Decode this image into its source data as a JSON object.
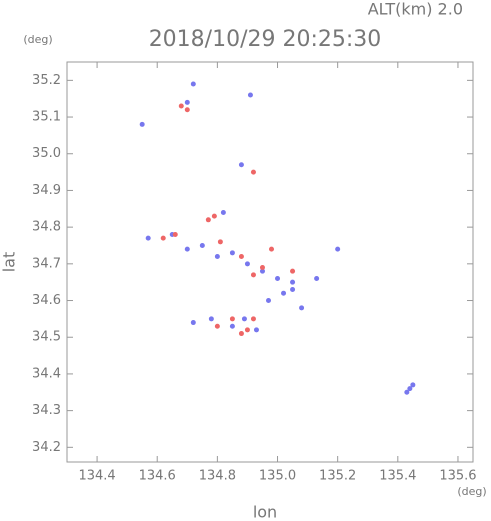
{
  "chart_data": {
    "type": "scatter",
    "title": "2018/10/29 20:25:30",
    "subtitle": "ALT(km) 2.0",
    "x_label": "lon",
    "y_label": "lat",
    "x_unit": "(deg)",
    "y_unit": "(deg)",
    "xlim": [
      134.3,
      135.65
    ],
    "ylim": [
      34.16,
      35.25
    ],
    "xticks": [
      {
        "value": 134.4,
        "label": "134.4"
      },
      {
        "value": 134.6,
        "label": "134.6"
      },
      {
        "value": 134.8,
        "label": "134.8"
      },
      {
        "value": 135.0,
        "label": "135.0"
      },
      {
        "value": 135.2,
        "label": "135.2"
      },
      {
        "value": 135.4,
        "label": "135.4"
      },
      {
        "value": 135.6,
        "label": "135.6"
      }
    ],
    "yticks": [
      {
        "value": 34.2,
        "label": "34.2"
      },
      {
        "value": 34.3,
        "label": "34.3"
      },
      {
        "value": 34.4,
        "label": "34.4"
      },
      {
        "value": 34.5,
        "label": "34.5"
      },
      {
        "value": 34.6,
        "label": "34.6"
      },
      {
        "value": 34.7,
        "label": "34.7"
      },
      {
        "value": 34.8,
        "label": "34.8"
      },
      {
        "value": 34.9,
        "label": "34.9"
      },
      {
        "value": 35.0,
        "label": "35.0"
      },
      {
        "value": 35.1,
        "label": "35.1"
      },
      {
        "value": 35.2,
        "label": "35.2"
      }
    ],
    "series": [
      {
        "color": "#7777ee",
        "x": [
          134.55,
          134.7,
          134.72,
          134.88,
          134.91,
          134.57,
          134.65,
          134.75,
          134.8,
          134.85,
          134.9,
          134.95,
          135.0,
          135.05,
          134.97,
          135.02,
          135.05,
          135.08,
          135.13,
          135.2,
          134.72,
          134.78,
          134.85,
          134.89,
          134.93,
          135.44,
          135.45,
          135.43,
          134.82,
          134.7
        ],
        "y": [
          35.08,
          35.14,
          35.19,
          34.97,
          35.16,
          34.77,
          34.78,
          34.75,
          34.72,
          34.73,
          34.7,
          34.68,
          34.66,
          34.65,
          34.6,
          34.62,
          34.63,
          34.58,
          34.66,
          34.74,
          34.54,
          34.55,
          34.53,
          34.55,
          34.52,
          34.36,
          34.37,
          34.35,
          34.84,
          34.74
        ]
      },
      {
        "color": "#ee6666",
        "x": [
          134.68,
          134.7,
          134.92,
          134.77,
          134.79,
          134.66,
          134.81,
          134.88,
          134.92,
          134.95,
          134.98,
          135.05,
          134.8,
          134.88,
          134.9,
          134.85,
          134.92,
          134.62
        ],
        "y": [
          35.13,
          35.12,
          34.95,
          34.82,
          34.83,
          34.78,
          34.76,
          34.72,
          34.67,
          34.69,
          34.74,
          34.68,
          34.53,
          34.51,
          34.52,
          34.55,
          34.55,
          34.77
        ]
      }
    ]
  }
}
